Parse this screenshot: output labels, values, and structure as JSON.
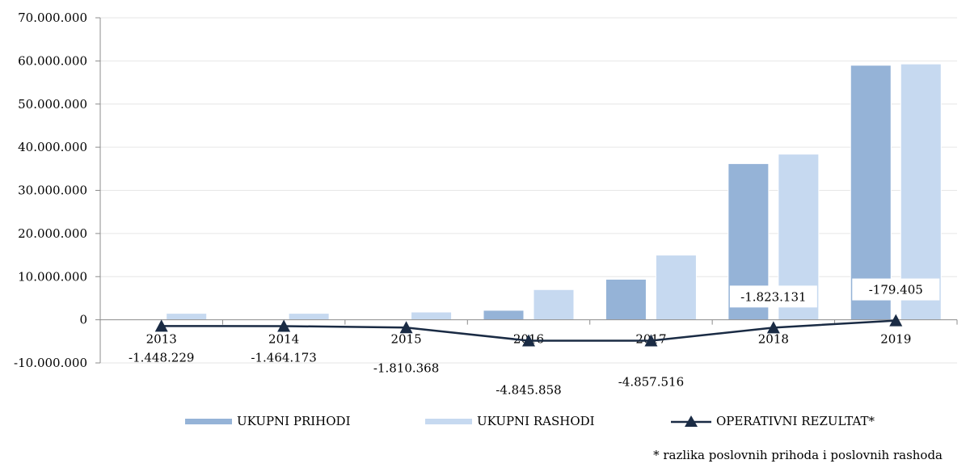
{
  "chart_data": {
    "type": "bar",
    "categories": [
      "2013",
      "2014",
      "2015",
      "2016",
      "2017",
      "2018",
      "2019"
    ],
    "series": [
      {
        "name": "UKUPNI PRIHODI",
        "type": "bar",
        "color": "#95b3d7",
        "values": [
          0,
          0,
          0,
          2200000,
          9400000,
          36200000,
          59000000
        ]
      },
      {
        "name": "UKUPNI RASHODI",
        "type": "bar",
        "color": "#c6d9f0",
        "values": [
          1500000,
          1500000,
          1800000,
          7000000,
          15000000,
          38400000,
          59300000
        ]
      },
      {
        "name": "OPERATIVNI REZULTAT*",
        "type": "line",
        "color": "#1a2b44",
        "values": [
          -1448229,
          -1464173,
          -1810368,
          -4845858,
          -4857516,
          -1823131,
          -179405
        ],
        "labels": [
          "-1.448.229",
          "-1.464.173",
          "-1.810.368",
          "-4.845.858",
          "-4.857.516",
          "-1.823.131",
          "-179.405"
        ]
      }
    ],
    "ylim": [
      -10000000,
      70000000
    ],
    "yticks": [
      -10000000,
      0,
      10000000,
      20000000,
      30000000,
      40000000,
      50000000,
      60000000,
      70000000
    ],
    "ytick_labels": [
      "-10.000.000",
      "0",
      "10.000.000",
      "20.000.000",
      "30.000.000",
      "40.000.000",
      "50.000.000",
      "60.000.000",
      "70.000.000"
    ],
    "grid": true,
    "legend": "bottom",
    "footnote": "* razlika poslovnih prihoda i poslovnih rashoda"
  }
}
